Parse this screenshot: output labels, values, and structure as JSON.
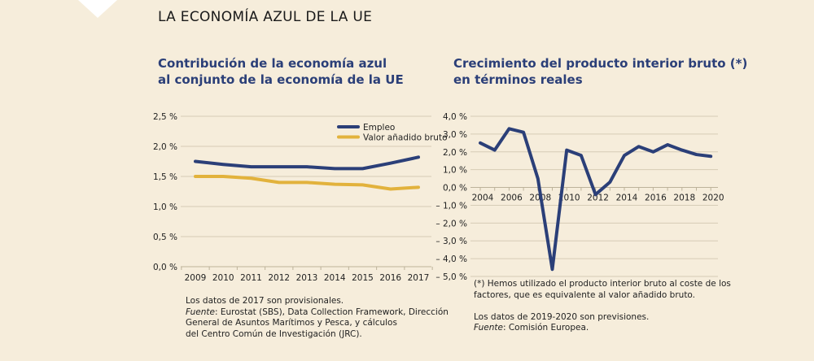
{
  "title": "LA ECONOMÍA AZUL DE LA UE",
  "colors": {
    "background": "#f6eddb",
    "navy": "#2b3f78",
    "gold": "#e2b23c",
    "grid": "#d6ccb6"
  },
  "decoration": "white-triangle-top-left",
  "chart_data": [
    {
      "type": "line",
      "title_line1": "Contribución de la economía azul",
      "title_line2": "al conjunto de la economía de la UE",
      "categories": [
        "2009",
        "2010",
        "2011",
        "2012",
        "2013",
        "2014",
        "2015",
        "2016",
        "2017"
      ],
      "ylim": [
        0,
        2.5
      ],
      "yticks": [
        0,
        0.5,
        1.0,
        1.5,
        2.0,
        2.5
      ],
      "ytick_labels": [
        "0,0 %",
        "0,5 %",
        "1,0 %",
        "1,5 %",
        "2,0 %",
        "2,5 %"
      ],
      "grid": true,
      "legend": "top-right",
      "series": [
        {
          "name": "Empleo",
          "color": "#2b3f78",
          "values": [
            1.75,
            1.7,
            1.66,
            1.66,
            1.66,
            1.63,
            1.63,
            1.72,
            1.82
          ]
        },
        {
          "name": "Valor añadido bruto",
          "color": "#e2b23c",
          "values": [
            1.5,
            1.5,
            1.47,
            1.4,
            1.4,
            1.37,
            1.36,
            1.29,
            1.32
          ]
        }
      ],
      "notes": [
        "Los datos de 2017 son provisionales.",
        {
          "label": "Fuente",
          "text": ": Eurostat (SBS), Data Collection Framework, Dirección"
        },
        "General de Asuntos Marítimos y Pesca, y cálculos",
        "del Centro Común de Investigación (JRC)."
      ]
    },
    {
      "type": "line",
      "title_line1": "Crecimiento del producto interior bruto (*)",
      "title_line2": "en términos reales",
      "x": [
        2004,
        2005,
        2006,
        2007,
        2008,
        2009,
        2010,
        2011,
        2012,
        2013,
        2014,
        2015,
        2016,
        2017,
        2018,
        2019,
        2020
      ],
      "xtick_labels": [
        "2004",
        "2006",
        "2008",
        "2010",
        "2012",
        "2014",
        "2016",
        "2018",
        "2020"
      ],
      "ylim": [
        -5,
        4
      ],
      "yticks": [
        4,
        3,
        2,
        1,
        0,
        -1,
        -2,
        -3,
        -4,
        -5
      ],
      "ytick_labels": [
        "4,0 %",
        "3,0 %",
        "2,0 %",
        "1,0 %",
        "0,0 %",
        "– 1,0 %",
        "– 2,0 %",
        "– 3,0 %",
        "– 4,0 %",
        "– 5,0 %"
      ],
      "grid": true,
      "series": [
        {
          "color": "#2b3f78",
          "values": [
            2.5,
            2.1,
            3.3,
            3.1,
            0.5,
            -4.6,
            2.1,
            1.8,
            -0.4,
            0.3,
            1.8,
            2.3,
            2.0,
            2.4,
            2.1,
            1.85,
            1.75
          ]
        }
      ],
      "notes": [
        "(*) Hemos utilizado el producto interior bruto al coste de los",
        "factores, que es equivalente al valor añadido bruto.",
        "",
        "Los datos de 2019-2020 son previsiones.",
        {
          "label": "Fuente",
          "text": ": Comisión Europea."
        }
      ]
    }
  ]
}
